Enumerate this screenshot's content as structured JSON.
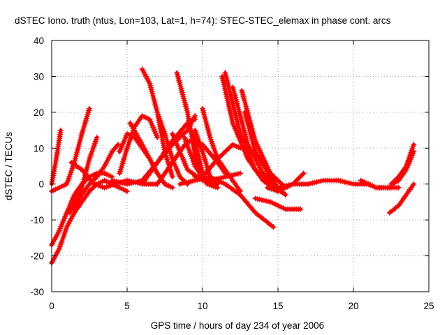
{
  "chart_data": {
    "type": "scatter",
    "title": "dSTEC Iono. truth (ntus, Lon=103, Lat=1, h=74): STEC-STEC_elemax in phase cont. arcs",
    "xlabel": "GPS time / hours of day 234 of year 2006",
    "ylabel": "dSTEC  / TECUs",
    "xlim": [
      0,
      25
    ],
    "ylim": [
      -30,
      40
    ],
    "xticks": [
      0,
      5,
      10,
      15,
      20,
      25
    ],
    "yticks": [
      -30,
      -20,
      -10,
      0,
      10,
      20,
      30,
      40
    ],
    "grid": true,
    "legend": "none",
    "marker": "+",
    "color": "#ff0000",
    "series": [
      {
        "x": [
          0.0,
          0.3,
          0.6
        ],
        "y": [
          0,
          7,
          15
        ]
      },
      {
        "x": [
          0.0,
          0.5,
          1.0,
          1.5,
          2.0,
          2.5
        ],
        "y": [
          -2,
          -1,
          0,
          6,
          14,
          21
        ]
      },
      {
        "x": [
          0.0,
          0.5,
          1.0,
          1.5,
          2.0,
          2.5,
          3.0,
          3.5,
          4.0
        ],
        "y": [
          -17,
          -13,
          -8,
          -3,
          0,
          2,
          3,
          3,
          2
        ]
      },
      {
        "x": [
          0.0,
          0.5,
          1.0,
          1.5,
          2.0,
          2.5,
          3.0,
          3.5,
          4.0,
          4.5,
          5.0
        ],
        "y": [
          -22,
          -18,
          -12,
          -8,
          -5,
          -2,
          0,
          1,
          0,
          -1,
          -2
        ]
      },
      {
        "x": [
          1.2,
          2.0,
          2.5,
          3.0
        ],
        "y": [
          -8,
          -1,
          7,
          13
        ]
      },
      {
        "x": [
          1.3,
          2.0,
          2.8,
          3.5,
          4.2,
          5.0,
          6.0,
          7.0
        ],
        "y": [
          6,
          4,
          0,
          -1,
          0,
          1,
          0,
          0
        ]
      },
      {
        "x": [
          1.5,
          2.0,
          2.5,
          3.0,
          3.5,
          4.0,
          4.4
        ],
        "y": [
          -7,
          -3,
          0,
          2,
          5,
          9,
          11
        ]
      },
      {
        "x": [
          4.0,
          5.0,
          6.0,
          7.0,
          8.0,
          9.0,
          9.5
        ],
        "y": [
          1,
          0,
          1,
          6,
          12,
          17,
          18
        ]
      },
      {
        "x": [
          4.5,
          5.0,
          5.5,
          6.0,
          6.5,
          7.0
        ],
        "y": [
          3,
          10,
          16,
          19,
          18,
          13
        ]
      },
      {
        "x": [
          4.5,
          5.0,
          5.5,
          6.0,
          6.5,
          7.0,
          7.5
        ],
        "y": [
          9,
          14,
          13,
          10,
          7,
          3,
          0
        ]
      },
      {
        "x": [
          5.2,
          6.0,
          6.5,
          7.0,
          7.5,
          8.0
        ],
        "y": [
          17,
          11,
          7,
          3,
          0,
          -1
        ]
      },
      {
        "x": [
          6.0,
          6.5,
          7.0,
          7.5,
          8.0
        ],
        "y": [
          32,
          28,
          20,
          9,
          2
        ]
      },
      {
        "x": [
          6.0,
          7.0,
          8.0,
          9.0,
          9.5
        ],
        "y": [
          0,
          6,
          11,
          15,
          19
        ]
      },
      {
        "x": [
          7.0,
          7.5,
          8.0,
          8.5,
          9.0
        ],
        "y": [
          20,
          14,
          7,
          2,
          0
        ]
      },
      {
        "x": [
          7.0,
          8.0,
          9.0,
          10.0,
          11.0,
          11.5
        ],
        "y": [
          0,
          6,
          12,
          11,
          6,
          3
        ]
      },
      {
        "x": [
          8.0,
          8.5,
          9.0,
          10.0,
          11.0
        ],
        "y": [
          14,
          9,
          4,
          1,
          0
        ]
      },
      {
        "x": [
          8.3,
          9.0,
          9.5,
          10.0,
          10.5
        ],
        "y": [
          31,
          20,
          8,
          2,
          0
        ]
      },
      {
        "x": [
          8.5,
          9.5,
          10.5,
          11.5,
          12.5,
          13.5,
          14.7
        ],
        "y": [
          0,
          1,
          2,
          0,
          -3,
          -8,
          -12
        ]
      },
      {
        "x": [
          8.8,
          9.5,
          10.3,
          11.0
        ],
        "y": [
          13,
          5,
          0,
          -1
        ]
      },
      {
        "x": [
          9.0,
          9.5,
          10.0,
          10.5
        ],
        "y": [
          17,
          12,
          3,
          0
        ]
      },
      {
        "x": [
          9.5,
          10.5,
          11.5,
          12.5
        ],
        "y": [
          2,
          1,
          2,
          3
        ]
      },
      {
        "x": [
          9.5,
          10.0,
          10.5
        ],
        "y": [
          15,
          9,
          2
        ]
      },
      {
        "x": [
          10.0,
          10.5,
          11.0,
          12.0,
          12.5
        ],
        "y": [
          21,
          13,
          7,
          1,
          -2
        ]
      },
      {
        "x": [
          10.0,
          11.0,
          12.0,
          12.5
        ],
        "y": [
          2,
          7,
          11,
          10
        ]
      },
      {
        "x": [
          11.3,
          12.0,
          13.0,
          14.0,
          15.0
        ],
        "y": [
          30,
          17,
          7,
          1,
          -2
        ]
      },
      {
        "x": [
          11.5,
          12.5,
          13.5,
          14.5,
          15.5
        ],
        "y": [
          31,
          14,
          4,
          0,
          -3
        ]
      },
      {
        "x": [
          12.0,
          13.0,
          14.0,
          15.0,
          16.0
        ],
        "y": [
          27,
          11,
          3,
          -1,
          0
        ]
      },
      {
        "x": [
          12.6,
          13.5,
          14.5,
          15.5
        ],
        "y": [
          26,
          12,
          3,
          -1
        ]
      },
      {
        "x": [
          12.8,
          13.5,
          14.5,
          15.0,
          15.5
        ],
        "y": [
          20,
          9,
          2,
          -1,
          -3
        ]
      },
      {
        "x": [
          13.5,
          14.5,
          15.5,
          16.5
        ],
        "y": [
          -4,
          -5,
          -7,
          -7
        ]
      },
      {
        "x": [
          14.3,
          15.0,
          15.5,
          16.0,
          16.7
        ],
        "y": [
          -1,
          -2,
          -1,
          0,
          3
        ]
      },
      {
        "x": [
          16.0,
          17.0,
          18.0,
          19.0,
          20.0,
          21.0
        ],
        "y": [
          0,
          0,
          1,
          1,
          0,
          0
        ]
      },
      {
        "x": [
          20.5,
          21.0,
          21.5,
          22.0,
          22.5
        ],
        "y": [
          1,
          0,
          -1,
          -1,
          -1
        ]
      },
      {
        "x": [
          21.0,
          21.5,
          22.0,
          22.5,
          23.0
        ],
        "y": [
          0,
          -1,
          -1,
          -1,
          -1
        ]
      },
      {
        "x": [
          22.5,
          23.0,
          23.5,
          24.0
        ],
        "y": [
          0,
          2,
          5,
          11
        ]
      },
      {
        "x": [
          22.6,
          23.0,
          23.5,
          24.0
        ],
        "y": [
          0,
          1,
          4,
          9
        ]
      },
      {
        "x": [
          22.4,
          23.0,
          23.5,
          24.0
        ],
        "y": [
          -8,
          -6,
          -3,
          0
        ]
      }
    ]
  }
}
